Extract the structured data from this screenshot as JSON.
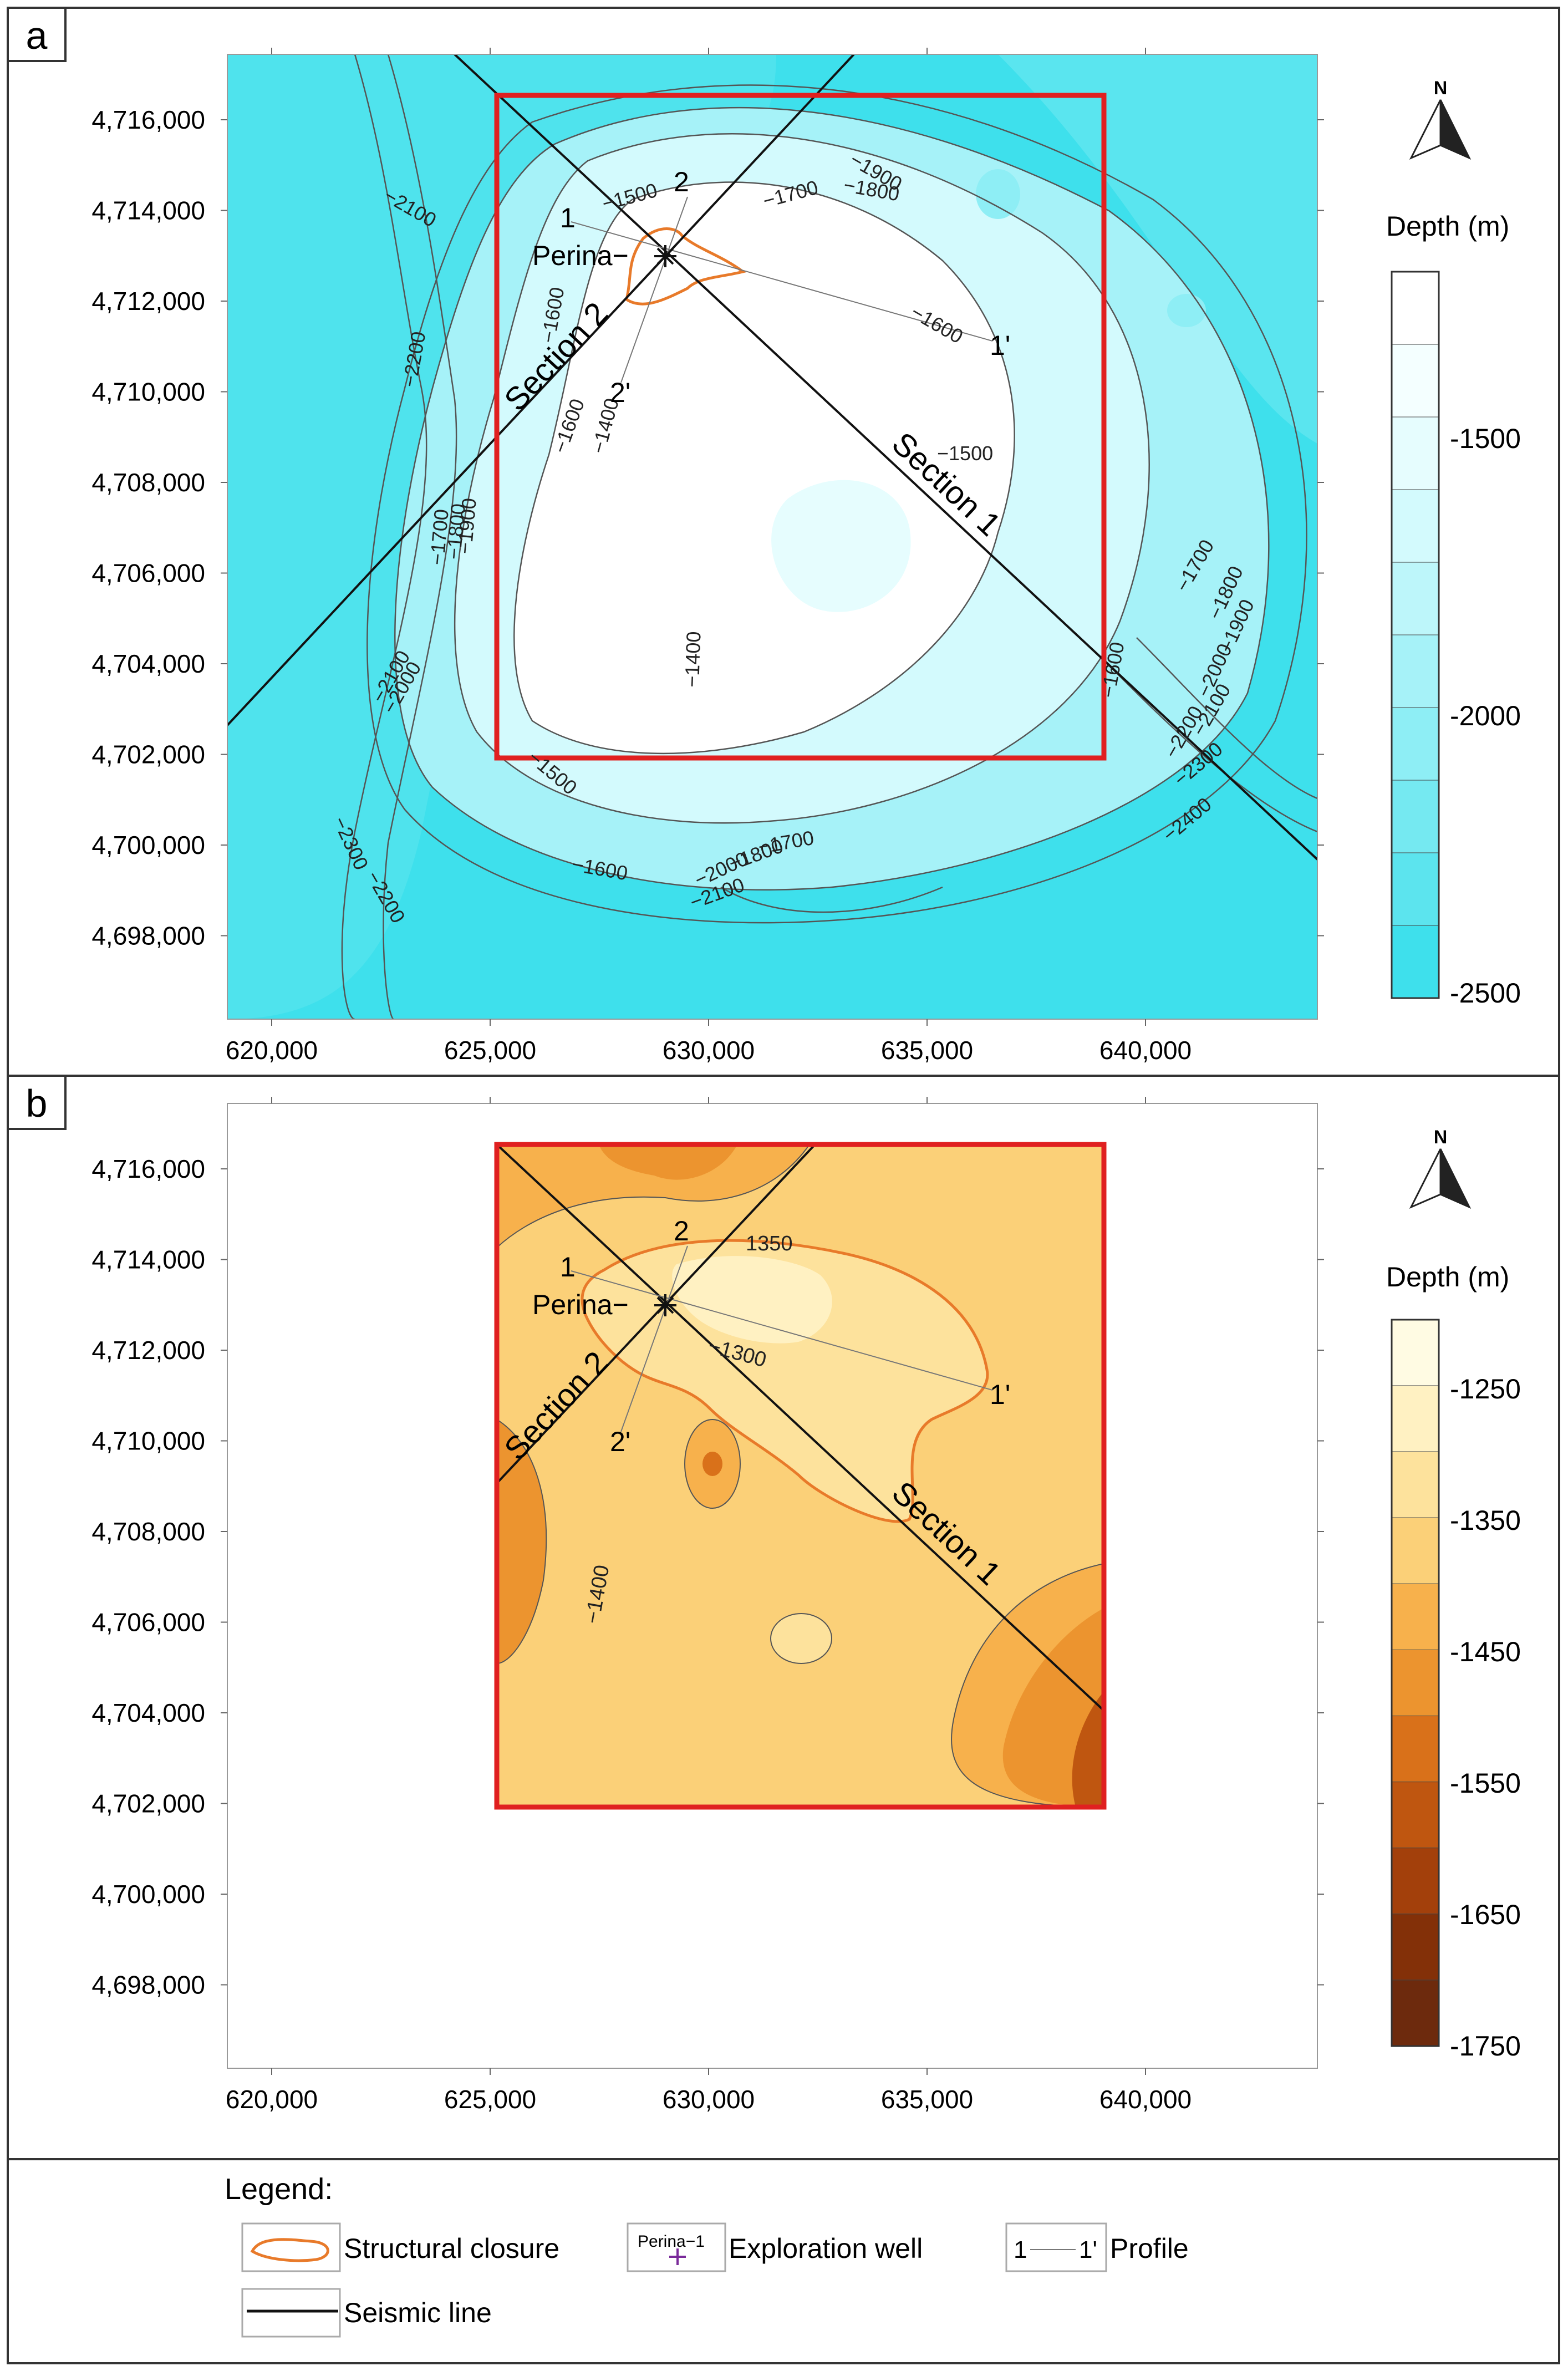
{
  "panels": {
    "a": {
      "letter": "a",
      "depth_title": "Depth (m)",
      "colorbar_ticks": [
        "-1500",
        "-2000",
        "-2500"
      ]
    },
    "b": {
      "letter": "b",
      "depth_title": "Depth (m)",
      "colorbar_ticks": [
        "-1250",
        "-1350",
        "-1450",
        "-1550",
        "-1650",
        "-1750"
      ]
    }
  },
  "north_label": "N",
  "axes": {
    "y_ticks": [
      "4,716,000",
      "4,714,000",
      "4,712,000",
      "4,710,000",
      "4,708,000",
      "4,706,000",
      "4,704,000",
      "4,702,000",
      "4,700,000",
      "4,698,000"
    ],
    "x_ticks": [
      "620,000",
      "625,000",
      "630,000",
      "635,000",
      "640,000"
    ]
  },
  "labels": {
    "well_name": "Perina−",
    "section_1": "Section 1",
    "section_2": "Section 2",
    "p1": "1",
    "p1_prime": "1'",
    "p2": "2",
    "p2_prime": "2'"
  },
  "contours_a": [
    "−2100",
    "−2200",
    "−2100",
    "−2000",
    "−2300",
    "−2200",
    "−1500",
    "−1600",
    "−1700",
    "−1800",
    "−1900",
    "−1600",
    "−1600",
    "−1400",
    "−1500",
    "−1400",
    "−1600",
    "−1700",
    "−1800",
    "−1900",
    "−2000",
    "−2100",
    "−2200",
    "−2300",
    "−2400",
    "−1500",
    "−1600",
    "−1700",
    "−1800",
    "−2000",
    "−2100",
    "−1700",
    "−1800",
    "−1900"
  ],
  "contours_b": [
    "1350",
    "−1300",
    "−1400"
  ],
  "legend": {
    "title": "Legend:",
    "closure": "Structural closure",
    "well_sym_label": "Perina−1",
    "well": "Exploration well",
    "profile_1": "1",
    "profile_1p": "1'",
    "profile": "Profile",
    "seismic": "Seismic line"
  },
  "colors": {
    "panel_a_scale": [
      "#ffffff",
      "#f4ffff",
      "#e6fdfe",
      "#d3fafd",
      "#bdf6fa",
      "#a6f2f8",
      "#8eeef5",
      "#75e9f1",
      "#5ce4ee",
      "#3ee0ec"
    ],
    "panel_b_scale": [
      "#fffbe3",
      "#fff1c2",
      "#fde29c",
      "#fbd078",
      "#f7b14c",
      "#ec942f",
      "#d9711a",
      "#bf5610",
      "#a3400b",
      "#833008",
      "#6d2a0d"
    ],
    "survey_box": "#e02020",
    "closure": "#e87a2a",
    "seismic_line": "#111111"
  }
}
